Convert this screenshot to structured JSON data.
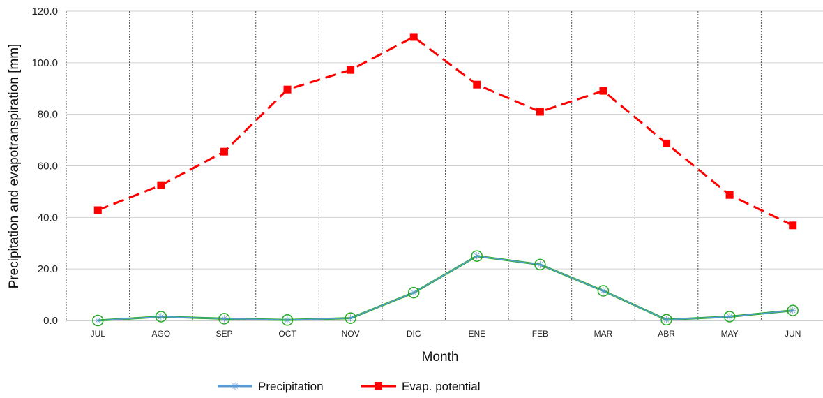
{
  "chart_data": {
    "type": "line",
    "title": "",
    "xlabel": "Month",
    "ylabel": "Precipitation and evapotranspiration [mm]",
    "categories": [
      "JUL",
      "AGO",
      "SEP",
      "OCT",
      "NOV",
      "DIC",
      "ENE",
      "FEB",
      "MAR",
      "ABR",
      "MAY",
      "JUN"
    ],
    "ylim": [
      0,
      120
    ],
    "yticks": [
      "0.0",
      "20.0",
      "40.0",
      "60.0",
      "80.0",
      "100.0",
      "120.0"
    ],
    "grid": true,
    "legend_position": "bottom",
    "series": [
      {
        "name": "Precipitation",
        "color": "#5b9bd5",
        "values": [
          0.0,
          1.5,
          0.7,
          0.2,
          0.9,
          10.8,
          25.0,
          21.7,
          11.5,
          0.3,
          1.5,
          3.9
        ]
      },
      {
        "name": "Evap. potential",
        "color": "#ff0000",
        "values": [
          42.8,
          52.5,
          65.5,
          89.6,
          97.2,
          110.0,
          91.5,
          81.0,
          89.1,
          68.7,
          48.7,
          36.9
        ]
      }
    ],
    "overlay_color": "#22aa22"
  }
}
